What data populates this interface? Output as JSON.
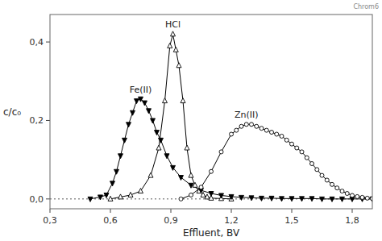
{
  "chart_data": {
    "type": "line",
    "annotation": "Chrom6",
    "xlabel": "Effluent, BV",
    "ylabel": "c/c₀",
    "xlim": [
      0.3,
      1.9
    ],
    "ylim": [
      -0.025,
      0.47
    ],
    "xticks": [
      {
        "value": 0.3,
        "label": "0,3"
      },
      {
        "value": 0.6,
        "label": "0,6"
      },
      {
        "value": 0.9,
        "label": "0,9"
      },
      {
        "value": 1.2,
        "label": "1,2"
      },
      {
        "value": 1.5,
        "label": "1,5"
      },
      {
        "value": 1.8,
        "label": "1,8"
      }
    ],
    "yticks": [
      {
        "value": 0.0,
        "label": "0,0"
      },
      {
        "value": 0.2,
        "label": "0,2"
      },
      {
        "value": 0.4,
        "label": "0,4"
      }
    ],
    "grid": false,
    "reference_line": {
      "y": 0.0,
      "line_style": "dotted"
    },
    "series": [
      {
        "name": "HCl",
        "color": "#000000",
        "marker": "triangle-up-open",
        "x": [
          0.6,
          0.65,
          0.7,
          0.75,
          0.8,
          0.84,
          0.87,
          0.895,
          0.91,
          0.925,
          0.94,
          0.96,
          0.98,
          1.0,
          1.02,
          1.04,
          1.06,
          1.08,
          1.1,
          1.15,
          1.2
        ],
        "values": [
          0.0,
          0.005,
          0.01,
          0.02,
          0.06,
          0.13,
          0.25,
          0.39,
          0.42,
          0.38,
          0.34,
          0.25,
          0.13,
          0.06,
          0.035,
          0.02,
          0.01,
          0.005,
          0.002,
          0.001,
          0.0
        ]
      },
      {
        "name": "Fe(II)",
        "color": "#000000",
        "marker": "triangle-down",
        "x": [
          0.5,
          0.55,
          0.58,
          0.61,
          0.63,
          0.65,
          0.67,
          0.69,
          0.71,
          0.73,
          0.75,
          0.77,
          0.79,
          0.81,
          0.83,
          0.85,
          0.88,
          0.91,
          0.95,
          1.0,
          1.05,
          1.1,
          1.15,
          1.2,
          1.25,
          1.3,
          1.35,
          1.4,
          1.45,
          1.5,
          1.55,
          1.6,
          1.65,
          1.7,
          1.75,
          1.8,
          1.85,
          1.9
        ],
        "values": [
          0.0,
          0.005,
          0.01,
          0.04,
          0.07,
          0.11,
          0.15,
          0.19,
          0.22,
          0.25,
          0.255,
          0.245,
          0.225,
          0.2,
          0.17,
          0.15,
          0.11,
          0.08,
          0.055,
          0.035,
          0.022,
          0.014,
          0.009,
          0.006,
          0.004,
          0.003,
          0.002,
          0.002,
          0.001,
          0.001,
          0.001,
          0.001,
          0.0,
          0.0,
          0.0,
          0.0,
          0.0,
          0.0
        ]
      },
      {
        "name": "Zn(II)",
        "color": "#000000",
        "marker": "circle-open",
        "x": [
          0.95,
          1.0,
          1.05,
          1.1,
          1.15,
          1.2,
          1.225,
          1.25,
          1.275,
          1.3,
          1.325,
          1.35,
          1.375,
          1.4,
          1.425,
          1.45,
          1.475,
          1.5,
          1.525,
          1.55,
          1.575,
          1.6,
          1.625,
          1.65,
          1.675,
          1.7,
          1.725,
          1.75,
          1.775,
          1.8,
          1.825,
          1.85,
          1.875,
          1.9
        ],
        "values": [
          0.0,
          0.01,
          0.03,
          0.07,
          0.12,
          0.165,
          0.175,
          0.185,
          0.19,
          0.19,
          0.185,
          0.18,
          0.175,
          0.17,
          0.165,
          0.16,
          0.15,
          0.14,
          0.13,
          0.12,
          0.105,
          0.09,
          0.075,
          0.06,
          0.048,
          0.037,
          0.028,
          0.02,
          0.014,
          0.009,
          0.006,
          0.004,
          0.002,
          0.001
        ]
      }
    ]
  }
}
